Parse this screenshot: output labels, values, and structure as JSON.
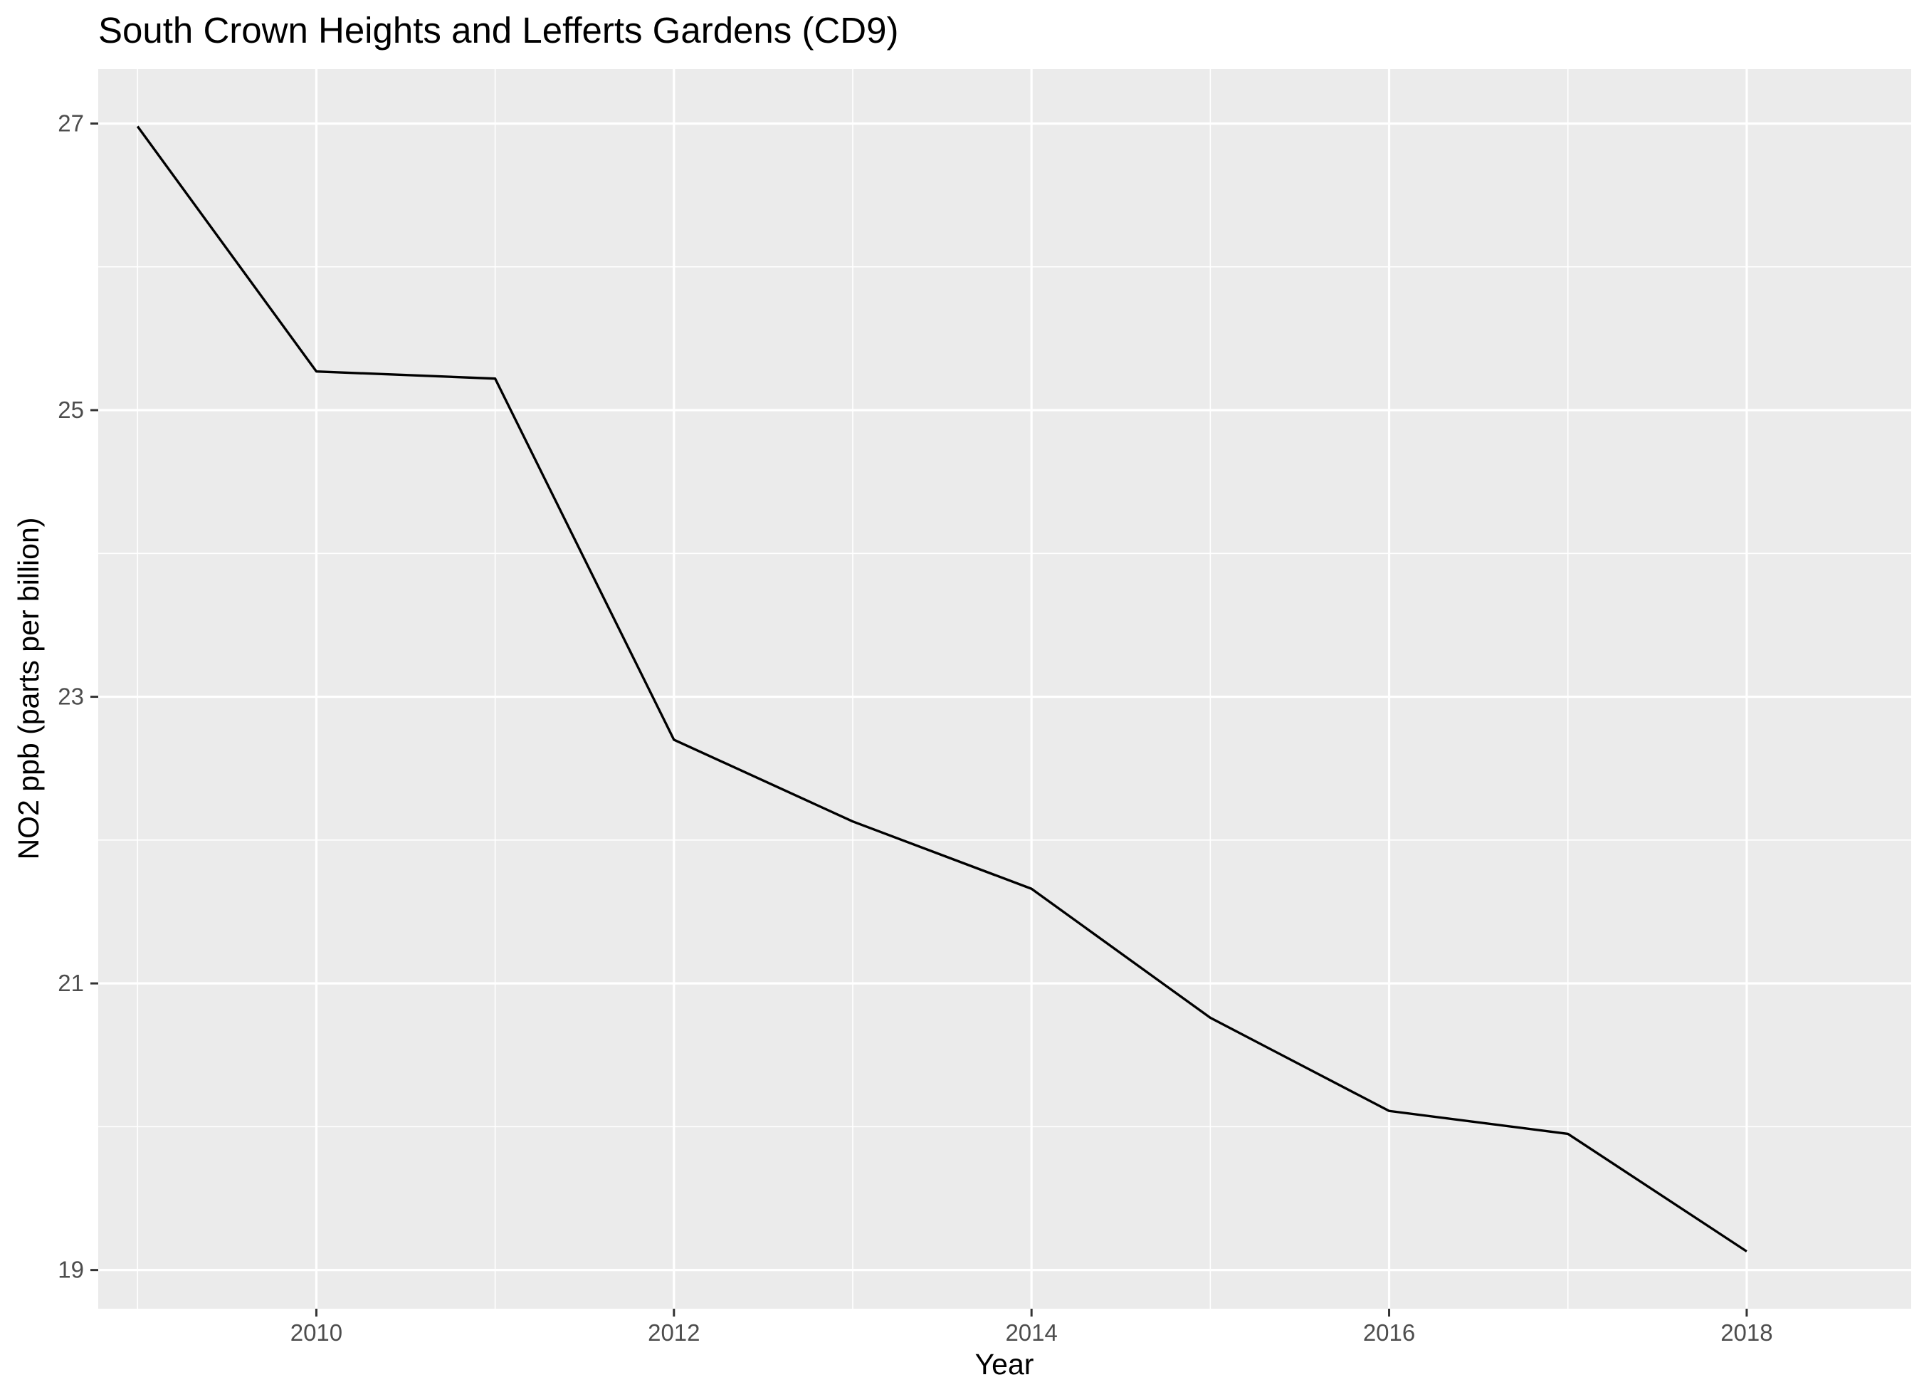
{
  "chart_data": {
    "type": "line",
    "title": "South Crown Heights and Lefferts Gardens (CD9)",
    "xlabel": "Year",
    "ylabel": "NO2 ppb (parts per billion)",
    "x": [
      2009,
      2010,
      2011,
      2012,
      2013,
      2014,
      2015,
      2016,
      2017,
      2018
    ],
    "series": [
      {
        "values": [
          26.98,
          25.27,
          25.22,
          22.7,
          22.13,
          21.66,
          20.76,
          20.11,
          19.95,
          19.13
        ]
      }
    ],
    "xlim": [
      2008.78,
      2018.92
    ],
    "ylim": [
      18.73,
      27.38
    ],
    "x_ticks": [
      2010,
      2012,
      2014,
      2016,
      2018
    ],
    "x_tick_labels": [
      "2010",
      "2012",
      "2014",
      "2016",
      "2018"
    ],
    "y_ticks": [
      19,
      21,
      23,
      25,
      27
    ],
    "y_tick_labels": [
      "19",
      "21",
      "23",
      "25",
      "27"
    ],
    "grid": true,
    "legend": "none",
    "colors": {
      "panel_background": "#ebebeb",
      "grid_line": "#ffffff",
      "line": "#000000",
      "tick_label": "#4d4d4d",
      "tick_mark": "#333333"
    }
  }
}
